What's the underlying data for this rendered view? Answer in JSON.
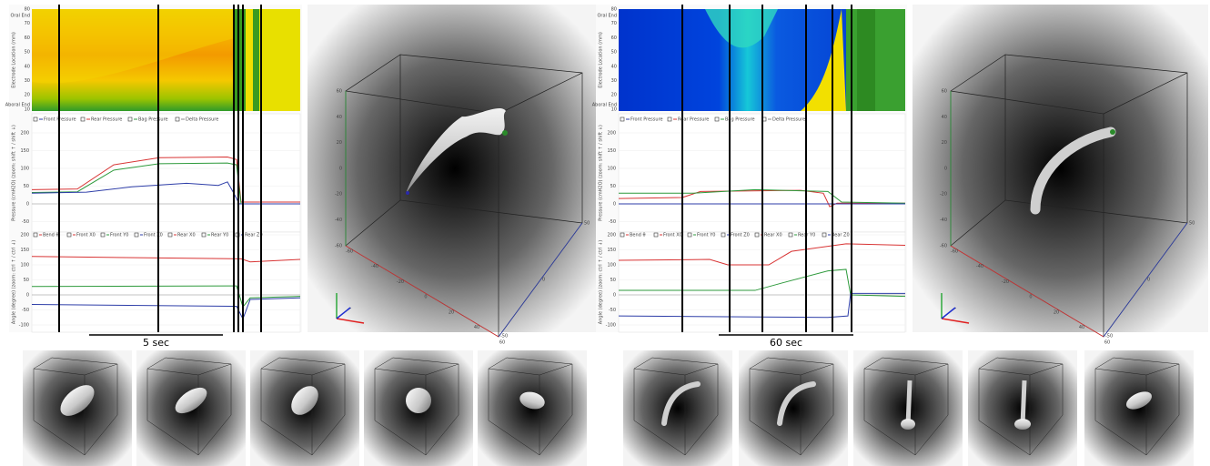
{
  "panels": [
    {
      "heatmap": {
        "y_label": "Electrode Location (mm)",
        "top_label": "Oral End",
        "bottom_label": "Aboral End",
        "yticks": [
          "80",
          "70",
          "60",
          "50",
          "40",
          "30",
          "20",
          "10"
        ]
      },
      "pressure": {
        "legend": [
          "Front Pressure",
          "Rear Pressure",
          "Bag Pressure",
          "Delta Pressure"
        ],
        "y_label": "Pressure (cmH2O) (zoom: shift ↑ / shift ↓)",
        "yticks": [
          "200",
          "150",
          "100",
          "50",
          "0",
          "-50"
        ]
      },
      "angle": {
        "legend": [
          "Bend θ",
          "Front X0",
          "Front Y0",
          "Front Z0",
          "Rear X0",
          "Rear Y0",
          "Rear Z0"
        ],
        "y_label": "Angle (degree) (zoom: ctrl ↑ / ctrl ↓)",
        "yticks": [
          "200",
          "150",
          "100",
          "50",
          "0",
          "-50",
          "-100"
        ]
      },
      "view3d": {
        "yticks": [
          "60",
          "40",
          "20",
          "0",
          "-20",
          "-40",
          "-60"
        ],
        "xticks": [
          "-60",
          "-40",
          "-20",
          "0",
          "20",
          "40",
          "60"
        ],
        "zticks": [
          "50",
          "0",
          "-50"
        ]
      },
      "scale_bar": "5 sec"
    },
    {
      "heatmap": {
        "y_label": "Electrode Location (mm)",
        "top_label": "Oral End",
        "bottom_label": "Aboral End",
        "yticks": [
          "80",
          "70",
          "60",
          "50",
          "40",
          "30",
          "20",
          "10"
        ]
      },
      "pressure": {
        "legend": [
          "Front Pressure",
          "Rear Pressure",
          "Bag Pressure",
          "Delta Pressure"
        ],
        "y_label": "Pressure (cmH2O) (zoom: shift ↑ / shift ↓)",
        "yticks": [
          "200",
          "150",
          "100",
          "50",
          "0",
          "-50"
        ]
      },
      "angle": {
        "legend": [
          "Bend θ",
          "Front X0",
          "Front Y0",
          "Front Z0",
          "Rear X0",
          "Rear Y0",
          "Rear Z0"
        ],
        "y_label": "Angle (degree) (zoom: ctrl ↑ / ctrl ↓)",
        "yticks": [
          "200",
          "150",
          "100",
          "50",
          "0",
          "-50",
          "-100"
        ]
      },
      "view3d": {
        "yticks": [
          "60",
          "40",
          "20",
          "0",
          "-20",
          "-40",
          "-60"
        ],
        "xticks": [
          "-60",
          "-40",
          "-20",
          "0",
          "20",
          "40",
          "60"
        ],
        "zticks": [
          "50",
          "0",
          "-50"
        ]
      },
      "scale_bar": "60 sec"
    }
  ]
}
